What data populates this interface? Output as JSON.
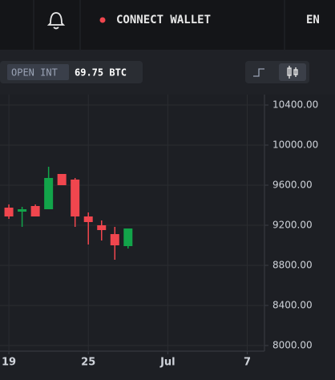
{
  "header": {
    "connect_wallet": "CONNECT WALLET",
    "language": "EN"
  },
  "toolbar": {
    "open_int_label": "OPEN INT",
    "open_int_value": "69.75 BTC"
  },
  "chart_data": {
    "type": "candlestick",
    "x": [
      19,
      20,
      21,
      22,
      23,
      24,
      25,
      26,
      27,
      28
    ],
    "open": [
      9376,
      9336,
      9392,
      9360,
      9712,
      9656,
      9288,
      9200,
      9112,
      8992
    ],
    "high": [
      9408,
      9384,
      9408,
      9784,
      9712,
      9672,
      9328,
      9248,
      9184,
      9168
    ],
    "low": [
      9264,
      9184,
      9288,
      9360,
      9600,
      9184,
      9008,
      9048,
      8856,
      8968
    ],
    "close": [
      9288,
      9360,
      9288,
      9672,
      9600,
      9288,
      9232,
      9152,
      9000,
      9168
    ],
    "up_color": "#12a44a",
    "down_color": "#f0464e",
    "xlim": [
      18.33,
      38.3
    ],
    "xticks": [
      19,
      25,
      {
        "value": 31,
        "label": "Jul"
      },
      {
        "value": 37,
        "label": "7"
      }
    ],
    "ylim": [
      7944,
      10504
    ],
    "yticks": [
      {
        "value": 8000,
        "label": "8000.00"
      },
      {
        "value": 8400,
        "label": "8400.00"
      },
      {
        "value": 8800,
        "label": "8800.00"
      },
      {
        "value": 9200,
        "label": "9200.00"
      },
      {
        "value": 9600,
        "label": "9600.00"
      },
      {
        "value": 10000,
        "label": "10000.00"
      },
      {
        "value": 10400,
        "label": "10400.00"
      }
    ],
    "grid": true
  }
}
